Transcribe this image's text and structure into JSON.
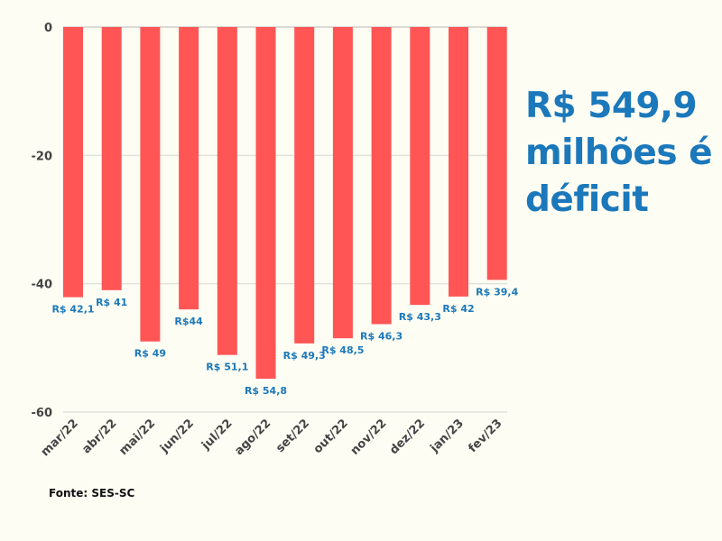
{
  "chart_data": {
    "type": "bar",
    "categories": [
      "mar/22",
      "abr/22",
      "mai/22",
      "jun/22",
      "jul/22",
      "ago/22",
      "set/22",
      "out/22",
      "nov/22",
      "dez/22",
      "jan/23",
      "fev/23"
    ],
    "values": [
      -42.1,
      -41,
      -49,
      -44,
      -51.1,
      -54.8,
      -49.3,
      -48.5,
      -46.3,
      -43.3,
      -42,
      -39.4
    ],
    "data_labels": [
      "R$ 42,1",
      "R$ 41",
      "R$ 49",
      "R$44",
      "R$ 51,1",
      "R$ 54,8",
      "R$ 49,3",
      "R$ 48,5",
      "R$ 46,3",
      "R$ 43,3",
      "R$ 42",
      "R$ 39,4"
    ],
    "ylim": [
      -60,
      0
    ],
    "yticks": [
      0,
      -20,
      -40,
      -60
    ],
    "ytick_labels": [
      "0",
      "-20",
      "-40",
      "-60"
    ],
    "grid": true,
    "xlabel": "",
    "ylabel": "",
    "colors": {
      "bar": "#ff5555",
      "data_label": "#1b78bb",
      "tick": "#444444",
      "grid": "#e2e2dc"
    }
  },
  "headline": "R$ 549,9 milhões é déficit",
  "source": "Fonte: SES-SC"
}
